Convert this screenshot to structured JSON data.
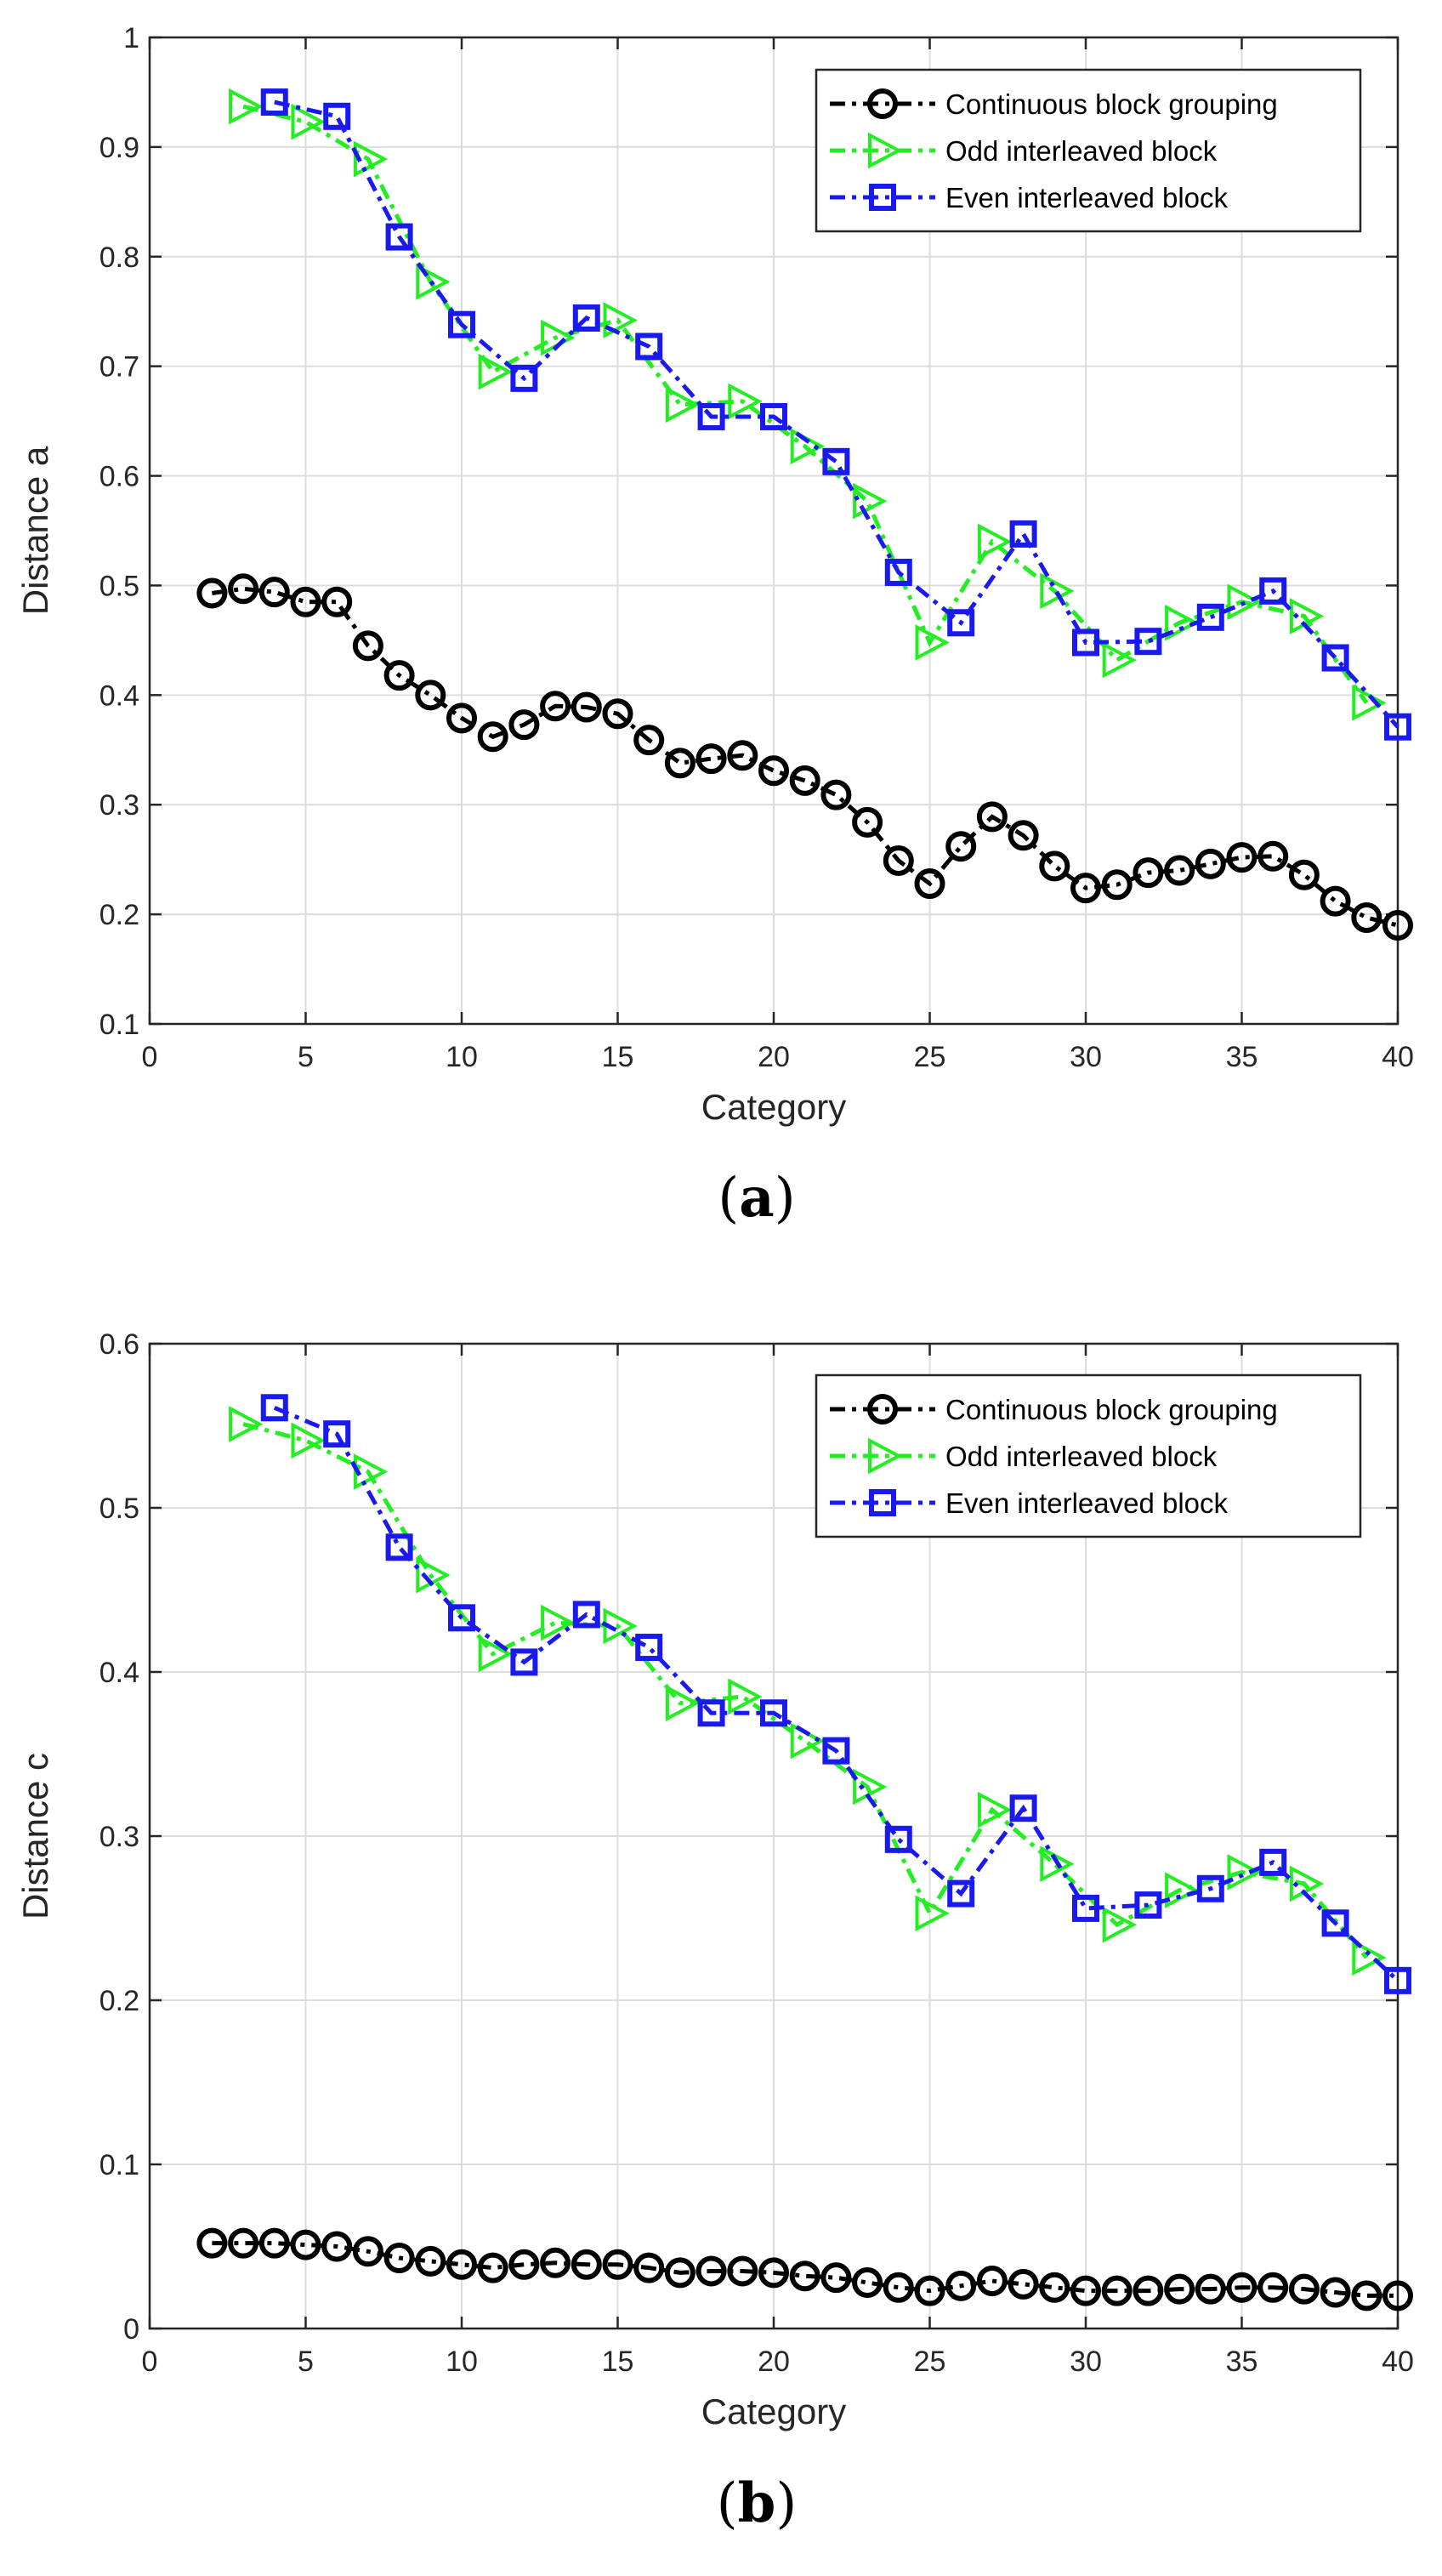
{
  "chart_data": [
    {
      "type": "line",
      "caption": "(a)",
      "caption_paren_open": "(",
      "caption_letter": "a",
      "caption_paren_close": ")",
      "xlabel": "Category",
      "ylabel": "Distance a",
      "xlim": [
        0,
        40
      ],
      "ylim": [
        0.1,
        1
      ],
      "xticks": [
        0,
        5,
        10,
        15,
        20,
        25,
        30,
        35,
        40
      ],
      "xtick_labels": [
        "0",
        "5",
        "10",
        "15",
        "20",
        "25",
        "30",
        "35",
        "40"
      ],
      "yticks": [
        0.1,
        0.2,
        0.3,
        0.4,
        0.5,
        0.6,
        0.7,
        0.8,
        0.9,
        1
      ],
      "ytick_labels": [
        "0.1",
        "0.2",
        "0.3",
        "0.4",
        "0.5",
        "0.6",
        "0.7",
        "0.8",
        "0.9",
        "1"
      ],
      "grid": true,
      "legend_position": "top-right",
      "series": [
        {
          "name": "Continuous block grouping",
          "color": "#000000",
          "marker": "circle",
          "x": [
            2,
            3,
            4,
            5,
            6,
            7,
            8,
            9,
            10,
            11,
            12,
            13,
            14,
            15,
            16,
            17,
            18,
            19,
            20,
            21,
            22,
            23,
            24,
            25,
            26,
            27,
            28,
            29,
            30,
            31,
            32,
            33,
            34,
            35,
            36,
            37,
            38,
            39,
            40
          ],
          "values": [
            0.493,
            0.497,
            0.494,
            0.485,
            0.485,
            0.445,
            0.418,
            0.4,
            0.379,
            0.362,
            0.373,
            0.39,
            0.389,
            0.383,
            0.359,
            0.338,
            0.342,
            0.345,
            0.331,
            0.322,
            0.309,
            0.284,
            0.249,
            0.228,
            0.262,
            0.289,
            0.272,
            0.244,
            0.224,
            0.227,
            0.238,
            0.24,
            0.246,
            0.252,
            0.253,
            0.236,
            0.212,
            0.197,
            0.19
          ]
        },
        {
          "name": "Odd interleaved block",
          "color": "#22ee22",
          "marker": "triangle-right",
          "x": [
            3,
            5,
            7,
            9,
            11,
            13,
            15,
            17,
            19,
            21,
            23,
            25,
            27,
            29,
            31,
            33,
            35,
            37,
            39
          ],
          "values": [
            0.937,
            0.923,
            0.889,
            0.777,
            0.695,
            0.726,
            0.742,
            0.665,
            0.668,
            0.627,
            0.577,
            0.448,
            0.54,
            0.495,
            0.432,
            0.466,
            0.485,
            0.472,
            0.393
          ]
        },
        {
          "name": "Even interleaved block",
          "color": "#1a1aee",
          "marker": "square",
          "x": [
            4,
            6,
            8,
            10,
            12,
            14,
            16,
            18,
            20,
            22,
            24,
            26,
            28,
            30,
            32,
            34,
            36,
            38,
            40
          ],
          "values": [
            0.941,
            0.928,
            0.818,
            0.738,
            0.689,
            0.744,
            0.718,
            0.654,
            0.654,
            0.613,
            0.512,
            0.466,
            0.547,
            0.448,
            0.449,
            0.471,
            0.495,
            0.434,
            0.371
          ]
        }
      ]
    },
    {
      "type": "line",
      "caption": "(b)",
      "caption_paren_open": "(",
      "caption_letter": "b",
      "caption_paren_close": ")",
      "xlabel": "Category",
      "ylabel": "Distance c",
      "xlim": [
        0,
        40
      ],
      "ylim": [
        0,
        0.6
      ],
      "xticks": [
        0,
        5,
        10,
        15,
        20,
        25,
        30,
        35,
        40
      ],
      "xtick_labels": [
        "0",
        "5",
        "10",
        "15",
        "20",
        "25",
        "30",
        "35",
        "40"
      ],
      "yticks": [
        0,
        0.1,
        0.2,
        0.3,
        0.4,
        0.5,
        0.6
      ],
      "ytick_labels": [
        "0",
        "0.1",
        "0.2",
        "0.3",
        "0.4",
        "0.5",
        "0.6"
      ],
      "grid": true,
      "legend_position": "top-right",
      "series": [
        {
          "name": "Continuous block grouping",
          "color": "#000000",
          "marker": "circle",
          "x": [
            2,
            3,
            4,
            5,
            6,
            7,
            8,
            9,
            10,
            11,
            12,
            13,
            14,
            15,
            16,
            17,
            18,
            19,
            20,
            21,
            22,
            23,
            24,
            25,
            26,
            27,
            28,
            29,
            30,
            31,
            32,
            33,
            34,
            35,
            36,
            37,
            38,
            39,
            40
          ],
          "values": [
            0.052,
            0.052,
            0.052,
            0.051,
            0.05,
            0.047,
            0.043,
            0.041,
            0.039,
            0.037,
            0.039,
            0.04,
            0.039,
            0.039,
            0.037,
            0.034,
            0.035,
            0.035,
            0.034,
            0.032,
            0.031,
            0.028,
            0.025,
            0.023,
            0.026,
            0.029,
            0.027,
            0.025,
            0.023,
            0.023,
            0.023,
            0.024,
            0.024,
            0.025,
            0.025,
            0.024,
            0.022,
            0.02,
            0.02
          ]
        },
        {
          "name": "Odd interleaved block",
          "color": "#22ee22",
          "marker": "triangle-right",
          "x": [
            3,
            5,
            7,
            9,
            11,
            13,
            15,
            17,
            19,
            21,
            23,
            25,
            27,
            29,
            31,
            33,
            35,
            37,
            39
          ],
          "values": [
            0.551,
            0.541,
            0.522,
            0.459,
            0.411,
            0.43,
            0.428,
            0.381,
            0.385,
            0.358,
            0.33,
            0.253,
            0.316,
            0.283,
            0.246,
            0.267,
            0.278,
            0.271,
            0.226
          ]
        },
        {
          "name": "Even interleaved block",
          "color": "#1a1aee",
          "marker": "square",
          "x": [
            4,
            6,
            8,
            10,
            12,
            14,
            16,
            18,
            20,
            22,
            24,
            26,
            28,
            30,
            32,
            34,
            36,
            38,
            40
          ],
          "values": [
            0.561,
            0.545,
            0.476,
            0.433,
            0.406,
            0.435,
            0.415,
            0.375,
            0.375,
            0.352,
            0.298,
            0.265,
            0.317,
            0.256,
            0.258,
            0.268,
            0.284,
            0.247,
            0.212
          ]
        }
      ]
    }
  ]
}
